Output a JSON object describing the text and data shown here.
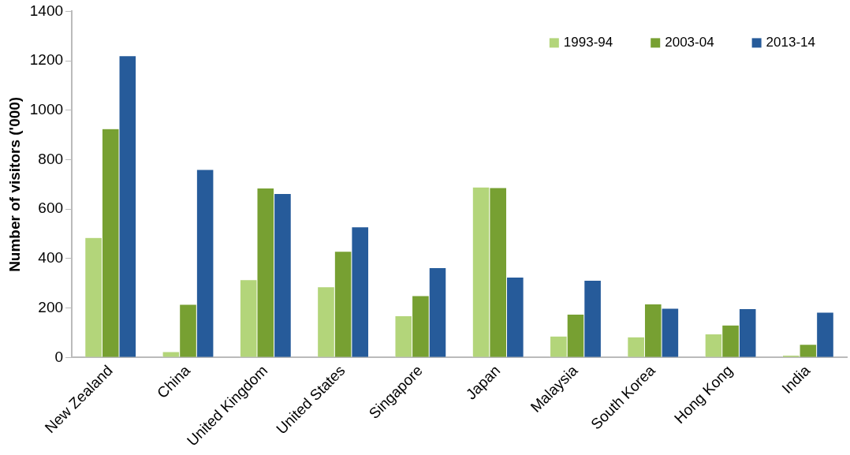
{
  "chart_data": {
    "type": "bar",
    "ylabel": "Number of visitors ('000)",
    "categories": [
      "New Zealand",
      "China",
      "United Kingdom",
      "United States",
      "Singapore",
      "Japan",
      "Malaysia",
      "South Korea",
      "Hong Kong",
      "India"
    ],
    "series": [
      {
        "name": "1993-94",
        "color": "#b3d57a",
        "values": [
          485,
          23,
          314,
          286,
          168,
          689,
          86,
          83,
          95,
          9
        ]
      },
      {
        "name": "2003-04",
        "color": "#77a032",
        "values": [
          925,
          215,
          685,
          429,
          250,
          687,
          175,
          216,
          131,
          53
        ]
      },
      {
        "name": "2013-14",
        "color": "#265b9a",
        "values": [
          1220,
          760,
          663,
          528,
          363,
          325,
          312,
          199,
          197,
          183
        ]
      }
    ],
    "ylim": [
      0,
      1400
    ],
    "yticks": [
      0,
      200,
      400,
      600,
      800,
      1000,
      1200,
      1400
    ],
    "grid": false,
    "legend": "top right"
  }
}
